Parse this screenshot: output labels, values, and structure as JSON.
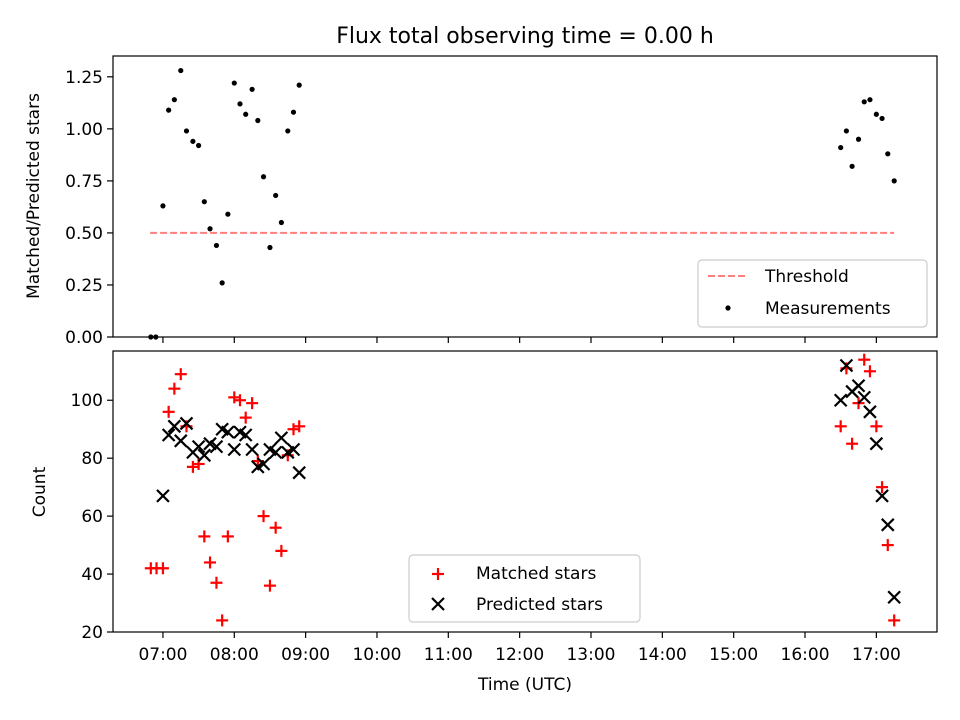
{
  "chart_data": [
    {
      "type": "scatter",
      "title": "Flux total observing time = 0.00 h",
      "xlabel": "",
      "ylabel": "Matched/Predicted stars",
      "ylim": [
        0,
        1.35
      ],
      "yticks": [
        0,
        0.25,
        0.5,
        0.75,
        1.0,
        1.25
      ],
      "ytick_labels": [
        "0.00",
        "0.25",
        "0.50",
        "0.75",
        "1.00",
        "1.25"
      ],
      "xlim_hours": [
        6.3,
        17.85
      ],
      "threshold": {
        "name": "Threshold",
        "value": 0.5,
        "x_start": 6.82,
        "x_end": 17.25,
        "color": "#ff7f7f"
      },
      "series": [
        {
          "name": "Measurements",
          "color": "#000000",
          "points": [
            [
              6.83,
              0.0
            ],
            [
              6.9,
              0.0
            ],
            [
              7.0,
              0.63
            ],
            [
              7.08,
              1.09
            ],
            [
              7.16,
              1.14
            ],
            [
              7.25,
              1.28
            ],
            [
              7.33,
              0.99
            ],
            [
              7.42,
              0.94
            ],
            [
              7.5,
              0.92
            ],
            [
              7.58,
              0.65
            ],
            [
              7.66,
              0.52
            ],
            [
              7.75,
              0.44
            ],
            [
              7.83,
              0.26
            ],
            [
              7.91,
              0.59
            ],
            [
              8.0,
              1.22
            ],
            [
              8.08,
              1.12
            ],
            [
              8.16,
              1.07
            ],
            [
              8.25,
              1.19
            ],
            [
              8.33,
              1.04
            ],
            [
              8.41,
              0.77
            ],
            [
              8.5,
              0.43
            ],
            [
              8.58,
              0.68
            ],
            [
              8.66,
              0.55
            ],
            [
              8.75,
              0.99
            ],
            [
              8.83,
              1.08
            ],
            [
              8.91,
              1.21
            ],
            [
              16.5,
              0.91
            ],
            [
              16.58,
              0.99
            ],
            [
              16.66,
              0.82
            ],
            [
              16.75,
              0.95
            ],
            [
              16.83,
              1.13
            ],
            [
              16.91,
              1.14
            ],
            [
              17.0,
              1.07
            ],
            [
              17.08,
              1.05
            ],
            [
              17.16,
              0.88
            ],
            [
              17.25,
              0.75
            ]
          ]
        }
      ],
      "legend": {
        "position": "lower-right",
        "entries": [
          "Threshold",
          "Measurements"
        ]
      }
    },
    {
      "type": "scatter",
      "title": "",
      "xlabel": "Time (UTC)",
      "ylabel": "Count",
      "ylim": [
        20,
        117
      ],
      "yticks": [
        20,
        40,
        60,
        80,
        100
      ],
      "ytick_labels": [
        "20",
        "40",
        "60",
        "80",
        "100"
      ],
      "xlim_hours": [
        6.3,
        17.85
      ],
      "xticks_hours": [
        7,
        8,
        9,
        10,
        11,
        12,
        13,
        14,
        15,
        16,
        17
      ],
      "xtick_labels": [
        "07:00",
        "08:00",
        "09:00",
        "10:00",
        "11:00",
        "12:00",
        "13:00",
        "14:00",
        "15:00",
        "16:00",
        "17:00"
      ],
      "series": [
        {
          "name": "Matched stars",
          "marker": "plus",
          "color": "#ff0000",
          "points": [
            [
              6.83,
              42
            ],
            [
              6.91,
              42
            ],
            [
              7.0,
              42
            ],
            [
              7.08,
              96
            ],
            [
              7.16,
              104
            ],
            [
              7.25,
              109
            ],
            [
              7.33,
              91
            ],
            [
              7.42,
              77
            ],
            [
              7.5,
              78
            ],
            [
              7.58,
              53
            ],
            [
              7.66,
              44
            ],
            [
              7.75,
              37
            ],
            [
              7.83,
              24
            ],
            [
              7.91,
              53
            ],
            [
              8.0,
              101
            ],
            [
              8.08,
              100
            ],
            [
              8.16,
              94
            ],
            [
              8.25,
              99
            ],
            [
              8.33,
              79
            ],
            [
              8.41,
              60
            ],
            [
              8.5,
              36
            ],
            [
              8.58,
              56
            ],
            [
              8.66,
              48
            ],
            [
              8.75,
              81
            ],
            [
              8.83,
              90
            ],
            [
              8.91,
              91
            ],
            [
              16.5,
              91
            ],
            [
              16.58,
              111
            ],
            [
              16.66,
              85
            ],
            [
              16.75,
              99
            ],
            [
              16.83,
              114
            ],
            [
              16.91,
              110
            ],
            [
              17.0,
              91
            ],
            [
              17.08,
              70
            ],
            [
              17.16,
              50
            ],
            [
              17.25,
              24
            ]
          ]
        },
        {
          "name": "Predicted stars",
          "marker": "x",
          "color": "#000000",
          "points": [
            [
              7.0,
              67
            ],
            [
              7.08,
              88
            ],
            [
              7.16,
              91
            ],
            [
              7.25,
              86
            ],
            [
              7.33,
              92
            ],
            [
              7.42,
              82
            ],
            [
              7.5,
              84
            ],
            [
              7.58,
              81
            ],
            [
              7.66,
              85
            ],
            [
              7.75,
              84
            ],
            [
              7.83,
              90
            ],
            [
              7.91,
              89
            ],
            [
              8.0,
              83
            ],
            [
              8.08,
              89
            ],
            [
              8.16,
              88
            ],
            [
              8.25,
              83
            ],
            [
              8.33,
              77
            ],
            [
              8.41,
              78
            ],
            [
              8.5,
              83
            ],
            [
              8.58,
              82
            ],
            [
              8.66,
              87
            ],
            [
              8.75,
              82
            ],
            [
              8.83,
              83
            ],
            [
              8.91,
              75
            ],
            [
              16.5,
              100
            ],
            [
              16.58,
              112
            ],
            [
              16.66,
              103
            ],
            [
              16.75,
              105
            ],
            [
              16.83,
              101
            ],
            [
              16.91,
              96
            ],
            [
              17.0,
              85
            ],
            [
              17.08,
              67
            ],
            [
              17.16,
              57
            ],
            [
              17.25,
              32
            ]
          ]
        }
      ],
      "legend": {
        "position": "lower-center",
        "entries": [
          "Matched stars",
          "Predicted stars"
        ]
      }
    }
  ]
}
